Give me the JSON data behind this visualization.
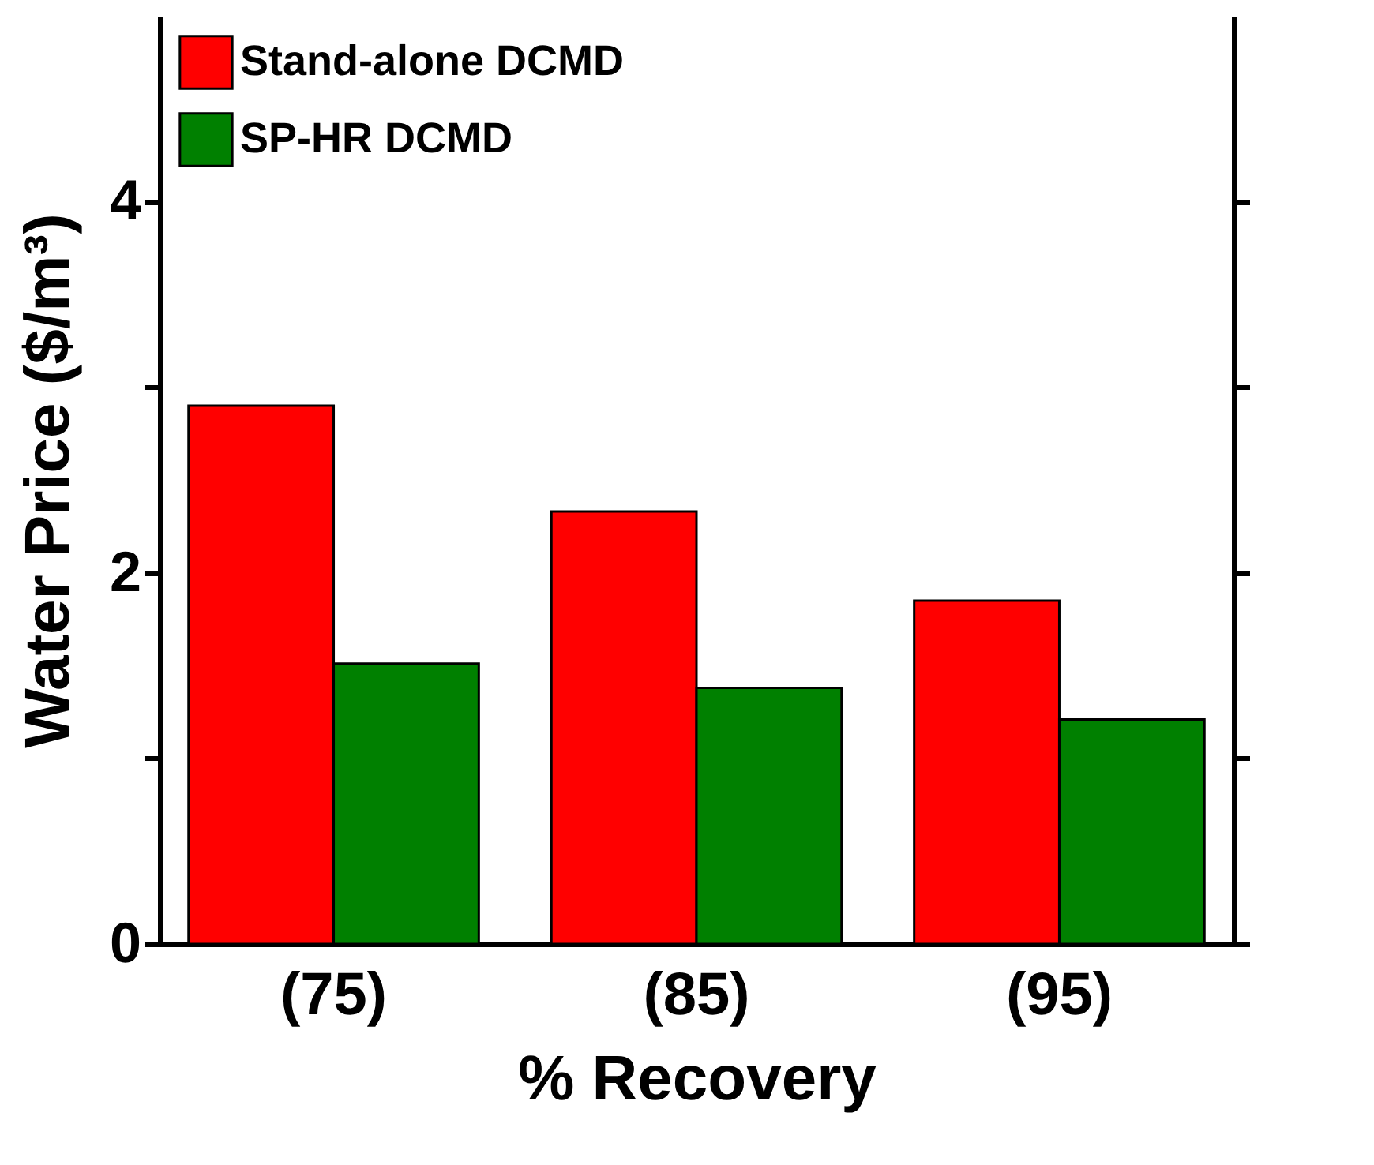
{
  "chart_data": {
    "type": "bar",
    "xlabel": "% Recovery",
    "ylabel": "Water Price ($/m³)",
    "categories": [
      "(75)",
      "(85)",
      "(95)"
    ],
    "series": [
      {
        "name": "Stand-alone DCMD",
        "color": "#ff0000",
        "values": [
          2.9,
          2.33,
          1.85
        ]
      },
      {
        "name": "SP-HR DCMD",
        "color": "#008000",
        "values": [
          1.51,
          1.38,
          1.21
        ]
      }
    ],
    "ylim": [
      0,
      5
    ],
    "yticks": [
      0,
      {
        "value": 1,
        "label": null
      },
      2,
      {
        "value": 3,
        "label": null
      },
      4
    ],
    "grid": false,
    "legend": "top left"
  }
}
